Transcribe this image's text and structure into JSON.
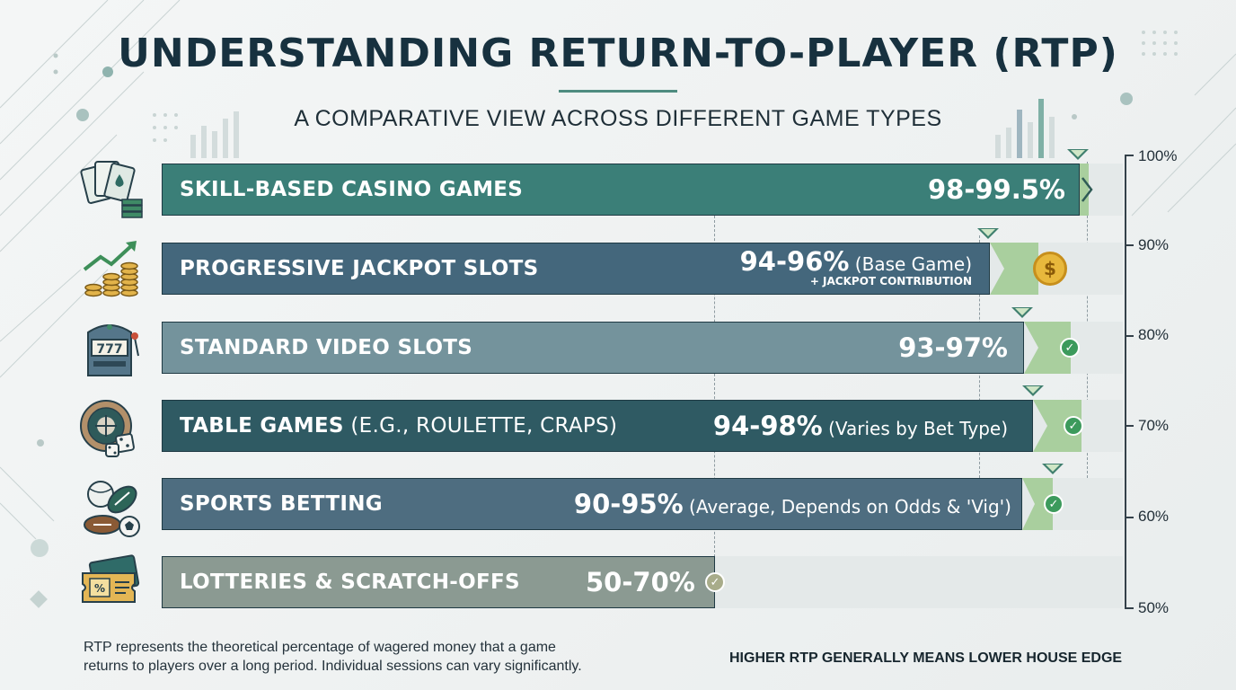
{
  "header": {
    "title": "UNDERSTANDING RETURN-TO-PLAYER (RTP)",
    "subtitle": "A COMPARATIVE VIEW ACROSS DIFFERENT GAME TYPES"
  },
  "rows": [
    {
      "label": "SKILL-BASED CASINO GAMES",
      "label_sub": "",
      "value": "98-99.5%",
      "note": "",
      "extra": "",
      "icon": "playing-cards-icon",
      "color": "#3b7f78",
      "badge": "arrow"
    },
    {
      "label": "PROGRESSIVE JACKPOT SLOTS",
      "label_sub": "",
      "value": "94-96%",
      "note": " (Base Game)",
      "extra": "+ JACKPOT CONTRIBUTION",
      "icon": "rising-coins-icon",
      "color": "#44677c",
      "badge": "coin",
      "badge_symbol": "$"
    },
    {
      "label": "STANDARD VIDEO SLOTS",
      "label_sub": "",
      "value": "93-97%",
      "note": "",
      "extra": "",
      "icon": "slot-machine-icon",
      "color": "#74939c",
      "badge": "check"
    },
    {
      "label": "TABLE GAMES",
      "label_sub": " (E.G., ROULETTE, CRAPS)",
      "value": "94-98%",
      "note": " (Varies by Bet Type)",
      "extra": "",
      "icon": "roulette-dice-icon",
      "color": "#2f5a63",
      "badge": "check"
    },
    {
      "label": "SPORTS BETTING",
      "label_sub": "",
      "value": "90-95%",
      "note": " (Average, Depends on Odds & 'Vig')",
      "extra": "",
      "icon": "sports-balls-icon",
      "color": "#4e6d80",
      "badge": "check"
    },
    {
      "label": "LOTTERIES & SCRATCH-OFFS",
      "label_sub": "",
      "value": "50-70%",
      "note": "",
      "extra": "",
      "icon": "lottery-ticket-icon",
      "color": "#8b9a92",
      "badge": "check"
    }
  ],
  "axis": {
    "ticks": [
      "100%",
      "90%",
      "80%",
      "70%",
      "60%",
      "50%"
    ]
  },
  "footer": {
    "note_line1": "RTP represents the theoretical percentage of wagered money that a game",
    "note_line2": "returns to players over a long period. Individual sessions can vary significantly.",
    "tagline": "HIGHER RTP GENERALLY MEANS LOWER HOUSE EDGE"
  },
  "chart_data": {
    "type": "bar",
    "orientation": "horizontal",
    "title": "UNDERSTANDING RETURN-TO-PLAYER (RTP)",
    "subtitle": "A COMPARATIVE VIEW ACROSS DIFFERENT GAME TYPES",
    "categories": [
      "SKILL-BASED CASINO GAMES",
      "PROGRESSIVE JACKPOT SLOTS",
      "STANDARD VIDEO SLOTS",
      "TABLE GAMES (E.G., ROULETTE, CRAPS)",
      "SPORTS BETTING",
      "LOTTERIES & SCRATCH-OFFS"
    ],
    "ranges": [
      [
        98,
        99.5
      ],
      [
        94,
        96
      ],
      [
        93,
        97
      ],
      [
        94,
        98
      ],
      [
        90,
        95
      ],
      [
        50,
        70
      ]
    ],
    "range_labels": [
      "98-99.5%",
      "94-96%",
      "93-97%",
      "94-98%",
      "90-95%",
      "50-70%"
    ],
    "x_axis_ticks": [
      100,
      90,
      80,
      70,
      60,
      50
    ],
    "xlim": [
      50,
      100
    ],
    "legend": "none",
    "grid": false
  }
}
